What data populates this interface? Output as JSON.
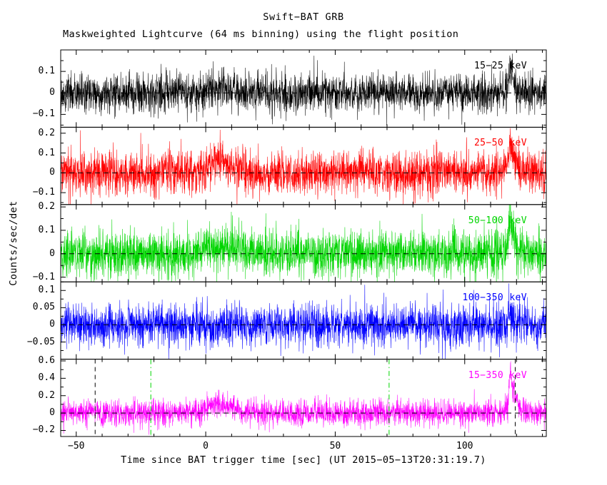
{
  "title": "Swift−BAT GRB",
  "subtitle": "Maskweighted Lightcurve (64 ms binning) using the flight position",
  "xlabel": "Time since BAT trigger time [sec] (UT 2015−05−13T20:31:19.7)",
  "ylabel": "Counts/sec/det",
  "chart_data": {
    "type": "line",
    "binning_ms": 64,
    "x_range": [
      -56,
      131.5
    ],
    "x_ticks": [
      -50,
      0,
      50,
      100
    ],
    "x_minor_step": 10,
    "grid": false,
    "legend_position": "in-panel-right",
    "zero_line": {
      "color": "#000000",
      "dash": [
        7,
        5
      ]
    },
    "panels": [
      {
        "label": "15−25 keV",
        "color": "#000000",
        "ylim": [
          -0.16,
          0.2
        ],
        "yticks": [
          -0.1,
          0,
          0.1
        ],
        "noise_sigma": 0.045,
        "pulses": [
          {
            "t": 117.5,
            "amp": 0.13,
            "rise": 0.6,
            "decay": 1.8
          }
        ],
        "bumps": [
          {
            "t": 5,
            "amp": 0.025,
            "w": 5
          }
        ]
      },
      {
        "label": "25−50 keV",
        "color": "#ff0000",
        "ylim": [
          -0.16,
          0.23
        ],
        "yticks": [
          -0.1,
          0,
          0.1,
          0.2
        ],
        "noise_sigma": 0.055,
        "pulses": [
          {
            "t": 117.5,
            "amp": 0.19,
            "rise": 0.6,
            "decay": 1.8
          }
        ],
        "bumps": [
          {
            "t": 5,
            "amp": 0.05,
            "w": 5
          }
        ]
      },
      {
        "label": "50−100 keV",
        "color": "#00d500",
        "ylim": [
          -0.12,
          0.21
        ],
        "yticks": [
          -0.1,
          0,
          0.1,
          0.2
        ],
        "noise_sigma": 0.05,
        "pulses": [
          {
            "t": 117.5,
            "amp": 0.17,
            "rise": 0.6,
            "decay": 1.8
          }
        ],
        "bumps": [
          {
            "t": 5,
            "amp": 0.03,
            "w": 5
          }
        ]
      },
      {
        "label": "100−350 keV",
        "color": "#0000ff",
        "ylim": [
          -0.1,
          0.125
        ],
        "yticks": [
          -0.05,
          0,
          0.05,
          0.1
        ],
        "noise_sigma": 0.03,
        "pulses": [
          {
            "t": 117.5,
            "amp": 0.05,
            "rise": 0.5,
            "decay": 1.2
          }
        ],
        "bumps": []
      },
      {
        "label": "15−350 keV",
        "color": "#ff00ff",
        "ylim": [
          -0.27,
          0.62
        ],
        "yticks": [
          -0.2,
          0,
          0.2,
          0.4,
          0.6
        ],
        "noise_sigma": 0.075,
        "pulses": [
          {
            "t": 117.5,
            "amp": 0.5,
            "rise": 0.6,
            "decay": 2.0
          }
        ],
        "bumps": [
          {
            "t": 5,
            "amp": 0.09,
            "w": 6
          }
        ],
        "vlines": [
          {
            "t": -42.7,
            "color": "#000000",
            "dash": "dash"
          },
          {
            "t": -21.2,
            "color": "#00d500",
            "dash": "dashdot"
          },
          {
            "t": 70.8,
            "color": "#00d500",
            "dash": "dashdot"
          },
          {
            "t": 119.5,
            "color": "#000000",
            "dash": "dash"
          }
        ]
      }
    ]
  }
}
